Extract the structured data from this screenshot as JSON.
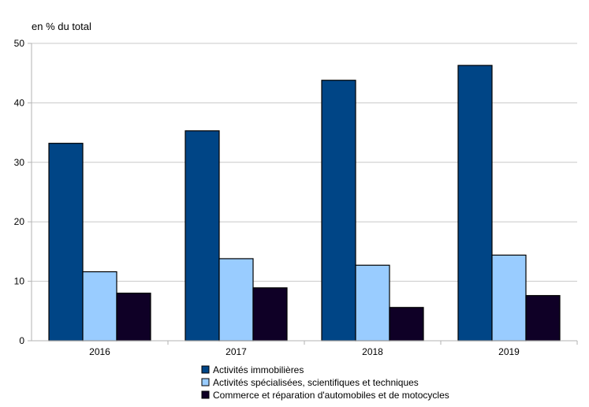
{
  "chart_data": {
    "type": "bar",
    "title": "",
    "xlabel": "",
    "ylabel": "en % du total",
    "ylim": [
      0,
      50
    ],
    "yticks": [
      0,
      10,
      20,
      30,
      40,
      50
    ],
    "grid": true,
    "legend_position": "bottom",
    "categories": [
      "2016",
      "2017",
      "2018",
      "2019"
    ],
    "series": [
      {
        "name": "Activités immobilières",
        "color": "#004586",
        "values": [
          33.2,
          35.3,
          43.8,
          46.3
        ]
      },
      {
        "name": "Activités spécialisées, scientifiques et techniques",
        "color": "#99ccff",
        "values": [
          11.6,
          13.8,
          12.7,
          14.4
        ]
      },
      {
        "name": "Commerce et réparation d'automobiles et de motocycles",
        "color": "#0f0026",
        "values": [
          8.0,
          8.9,
          5.6,
          7.6
        ]
      }
    ]
  }
}
